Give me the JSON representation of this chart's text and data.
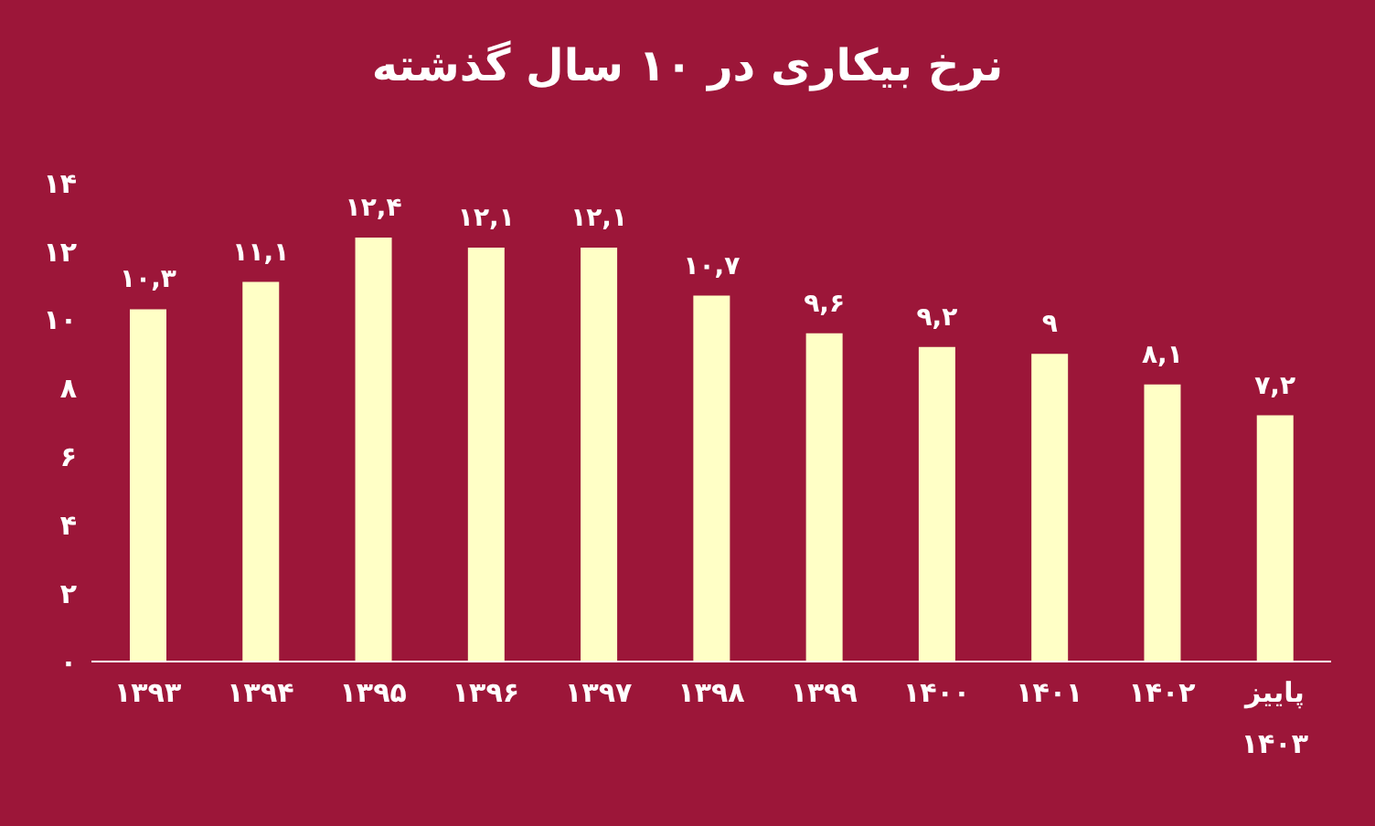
{
  "chart_data": {
    "type": "bar",
    "title": "نرخ بیکاری در ۱۰ سال گذشته",
    "categories": [
      "۱۳۹۳",
      "۱۳۹۴",
      "۱۳۹۵",
      "۱۳۹۶",
      "۱۳۹۷",
      "۱۳۹۸",
      "۱۳۹۹",
      "۱۴۰۰",
      "۱۴۰۱",
      "۱۴۰۲",
      "پاییز ۱۴۰۳"
    ],
    "values": [
      10.3,
      11.1,
      12.4,
      12.1,
      12.1,
      10.7,
      9.6,
      9.2,
      9,
      8.1,
      7.2
    ],
    "value_labels": [
      "۱۰,۳",
      "۱۱,۱",
      "۱۲,۴",
      "۱۲,۱",
      "۱۲,۱",
      "۱۰,۷",
      "۹,۶",
      "۹,۲",
      "۹",
      "۸,۱",
      "۷,۲"
    ],
    "color": "#ffffc6",
    "ylim": [
      0,
      14
    ],
    "yticks": [
      {
        "value": 0,
        "label": "۰"
      },
      {
        "value": 2,
        "label": "۲"
      },
      {
        "value": 4,
        "label": "۴"
      },
      {
        "value": 6,
        "label": "۶"
      },
      {
        "value": 8,
        "label": "۸"
      },
      {
        "value": 10,
        "label": "۱۰"
      },
      {
        "value": 12,
        "label": "۱۲"
      },
      {
        "value": 14,
        "label": "۱۴"
      }
    ],
    "grid": false,
    "legend": false
  }
}
